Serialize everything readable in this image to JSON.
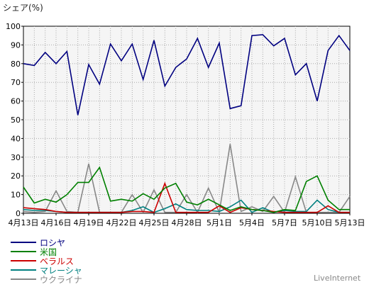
{
  "chart_data": {
    "type": "line",
    "ylabel": "シェア(%)",
    "ylim": [
      0,
      100
    ],
    "yticks": [
      0,
      10,
      20,
      30,
      40,
      50,
      60,
      70,
      80,
      90,
      100
    ],
    "xlim": [
      0,
      30
    ],
    "x_tick_labels": [
      "4月13日",
      "4月16日",
      "4月19日",
      "4月22日",
      "4月25日",
      "4月28日",
      "5月1日",
      "5月4日",
      "5月7日",
      "5月10日",
      "5月13日"
    ],
    "x_tick_positions": [
      0,
      3,
      6,
      9,
      12,
      15,
      18,
      21,
      24,
      27,
      30
    ],
    "grid": true,
    "legend_position": "bottom-left",
    "series": [
      {
        "name": "ロシヤ",
        "color": "#000080",
        "values": [
          80,
          79,
          86,
          80,
          86.5,
          52.5,
          79.5,
          69,
          90.5,
          81.5,
          90.5,
          71.5,
          92.5,
          68,
          78,
          82.5,
          93.5,
          78,
          91,
          56,
          57.5,
          95,
          95.5,
          89.5,
          93.5,
          74,
          80,
          60,
          87,
          95,
          87
        ]
      },
      {
        "name": "米国",
        "color": "#008000",
        "values": [
          14,
          5.5,
          7.5,
          6,
          10,
          16.5,
          16.5,
          24.5,
          6.5,
          7.5,
          6.5,
          10.5,
          7.5,
          13.5,
          16,
          6,
          4.5,
          7.5,
          4.5,
          1.5,
          3.5,
          2,
          1.5,
          0.5,
          2,
          1.5,
          17,
          20,
          7,
          2,
          2
        ]
      },
      {
        "name": "ベラルス",
        "color": "#cc0000",
        "values": [
          3,
          2.5,
          2,
          1,
          0.5,
          0.5,
          0.5,
          0.5,
          0.5,
          0.5,
          1,
          1,
          0.5,
          16,
          0.5,
          0.5,
          0.5,
          0.5,
          4,
          0.5,
          3,
          2,
          1.5,
          1,
          0.5,
          0.5,
          0.5,
          0.5,
          4,
          0.5,
          0.5
        ]
      },
      {
        "name": "マレーシャ",
        "color": "#008080",
        "values": [
          2,
          1.5,
          1.5,
          1,
          0.5,
          0.5,
          0.5,
          0.5,
          0.5,
          0.5,
          1.5,
          3.5,
          0.5,
          2.5,
          5,
          2,
          1.5,
          1.5,
          1,
          3.5,
          7,
          0.5,
          3,
          0.5,
          1.5,
          1,
          1,
          7,
          2,
          0.5,
          0.5
        ]
      },
      {
        "name": "ウクライナ",
        "color": "#888888",
        "values": [
          1,
          0.5,
          1,
          12,
          1,
          0.5,
          26.5,
          0.5,
          0.5,
          0.5,
          10,
          0.5,
          12.5,
          0.5,
          0.5,
          10,
          0.5,
          13.5,
          0.5,
          37,
          1,
          3.5,
          1,
          9,
          0.5,
          19.5,
          0.5,
          0.5,
          0.5,
          0.5,
          9
        ]
      }
    ],
    "credit": "LiveInternet"
  }
}
